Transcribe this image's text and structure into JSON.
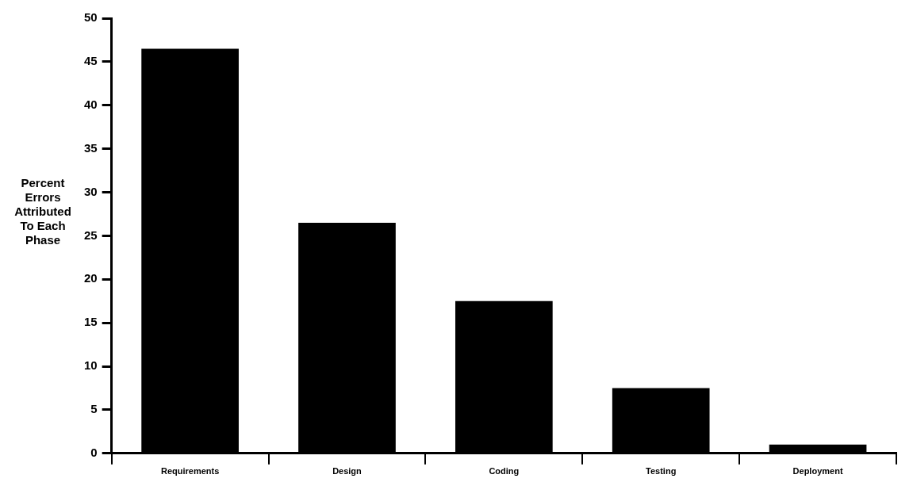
{
  "chart_data": {
    "type": "bar",
    "ylabel": "Percent Errors Attributed To Each Phase",
    "categories": [
      "Requirements",
      "Design",
      "Coding",
      "Testing",
      "Deployment"
    ],
    "values": [
      46.5,
      26.5,
      17.5,
      7.5,
      1
    ],
    "color": "#000000",
    "ylim": [
      0,
      50
    ],
    "yticks": [
      0,
      5,
      10,
      15,
      20,
      25,
      30,
      35,
      40,
      45,
      50
    ],
    "grid": false,
    "legend": false
  }
}
